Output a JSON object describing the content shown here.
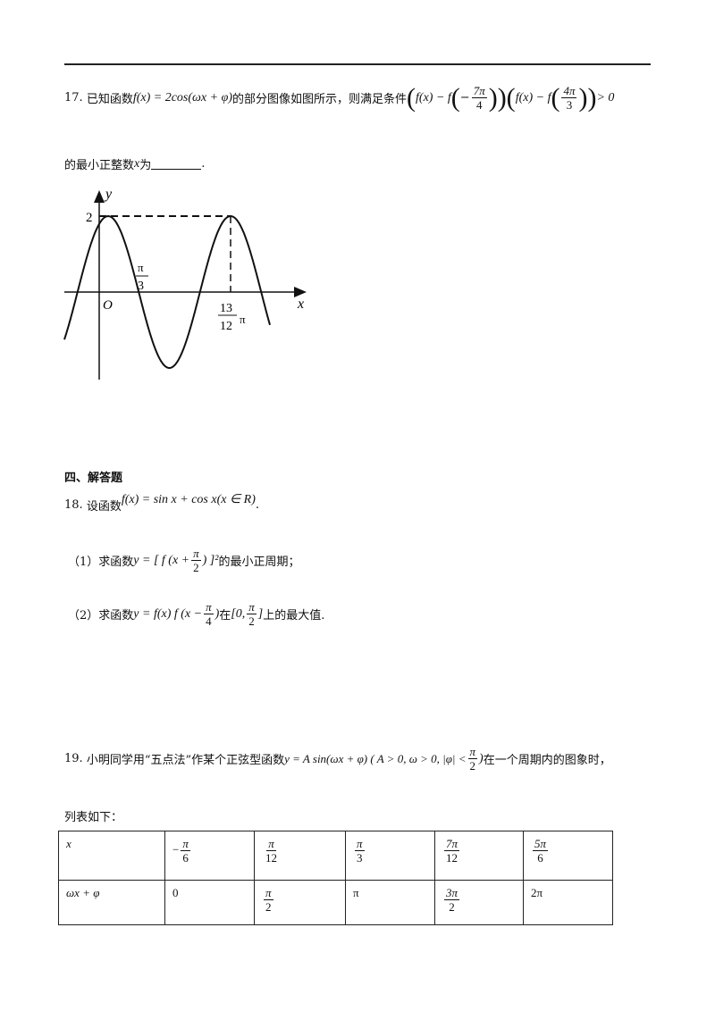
{
  "q17": {
    "number": "17.",
    "text1": "已知函数",
    "formula": "f(x) = 2cos(ωx + φ)",
    "text2": "的部分图像如图所示，则满足条件",
    "cond_a": "f(x) − f",
    "cond_a_sign": "−",
    "frac1_n": "7π",
    "frac1_d": "4",
    "cond_b": "f(x) − f",
    "frac2_n": "4π",
    "frac2_d": "3",
    "cond_tail": "> 0",
    "line2_text": "的最小正整数",
    "line2_var": "x",
    "line2_text2": "为",
    "line2_end": "."
  },
  "graph": {
    "y_label": "y",
    "x_label": "x",
    "origin_label": "O",
    "max_label": "2",
    "zero_n": "π",
    "zero_d": "3",
    "peak_n": "13",
    "peak_d": "12",
    "peak_suffix": "π"
  },
  "section": {
    "title": "四、解答题"
  },
  "q18": {
    "number": "18.",
    "text1": "设函数",
    "formula": "f(x) = sin x + cos x(x ∈ R)",
    "end": ".",
    "p1_label": "（1）求函数",
    "p1_formula_a": "y = [ f (x +",
    "p1_frac_n": "π",
    "p1_frac_d": "2",
    "p1_formula_b": ") ]²",
    "p1_text": "的最小正周期；",
    "p2_label": "（2）求函数",
    "p2_formula_a": "y = f(x) f (x −",
    "p2_frac_n": "π",
    "p2_frac_d": "4",
    "p2_formula_b": ")",
    "p2_in": "在",
    "p2_int_a": "[0,",
    "p2_int_n": "π",
    "p2_int_d": "2",
    "p2_int_b": "]",
    "p2_text": "上的最大值."
  },
  "q19": {
    "number": "19.",
    "text1": "小明同学用“五点法”作某个正弦型函数",
    "formula_a": "y = A sin(ωx + φ) ( A > 0, ω > 0, |φ| <",
    "frac_n": "π",
    "frac_d": "2",
    "formula_b": ")",
    "text2": "在一个周期内的图象时，",
    "line2": "列表如下："
  },
  "table": {
    "rows": [
      {
        "head": "x",
        "cells": [
          {
            "sign": "−",
            "n": "π",
            "d": "6"
          },
          {
            "n": "π",
            "d": "12"
          },
          {
            "n": "π",
            "d": "3"
          },
          {
            "n": "7π",
            "d": "12"
          },
          {
            "n": "5π",
            "d": "6"
          }
        ]
      },
      {
        "head": "ωx + φ",
        "cells": [
          {
            "v": "0"
          },
          {
            "n": "π",
            "d": "2"
          },
          {
            "v": "π"
          },
          {
            "n": "3π",
            "d": "2"
          },
          {
            "v": "2π"
          }
        ]
      }
    ]
  }
}
